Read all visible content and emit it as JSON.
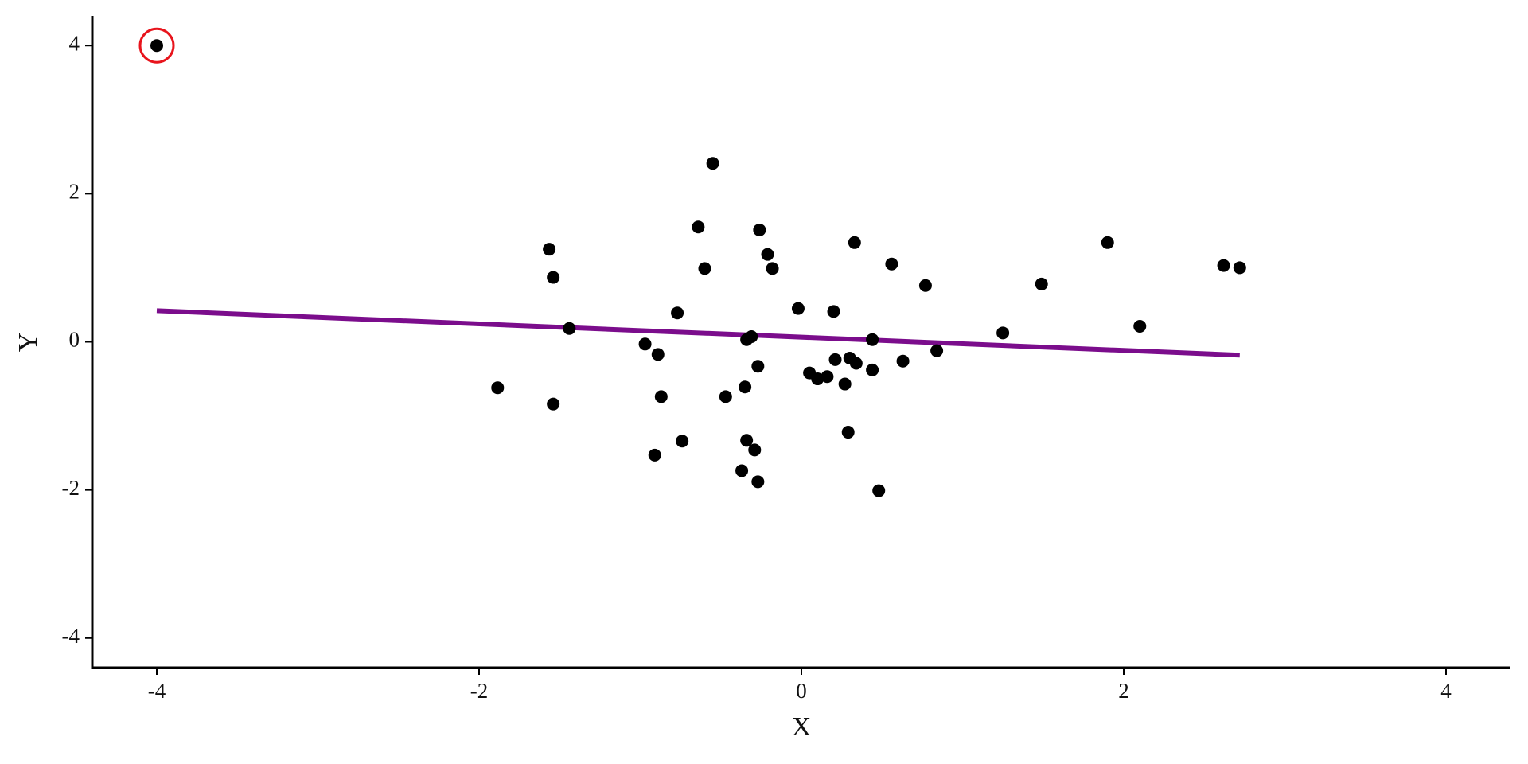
{
  "chart_data": {
    "type": "scatter",
    "x_label": "X",
    "y_label": "Y",
    "x": [
      -4,
      -1.885,
      -1.565,
      -1.54,
      -1.54,
      -1.44,
      -0.97,
      -0.89,
      -0.91,
      -0.87,
      -0.77,
      -0.74,
      -0.64,
      -0.6,
      -0.55,
      -0.47,
      -0.37,
      -0.35,
      -0.34,
      -0.34,
      -0.31,
      -0.29,
      -0.27,
      -0.27,
      -0.26,
      -0.21,
      -0.18,
      -0.02,
      0.05,
      0.1,
      0.16,
      0.2,
      0.21,
      0.27,
      0.29,
      0.3,
      0.33,
      0.34,
      0.44,
      0.44,
      0.48,
      0.56,
      0.63,
      0.77,
      0.84,
      1.25,
      1.49,
      1.9,
      2.1,
      2.62,
      2.72
    ],
    "values": [
      4,
      -0.62,
      1.25,
      0.87,
      -0.84,
      0.18,
      -0.03,
      -0.17,
      -1.53,
      -0.74,
      0.39,
      -1.34,
      1.55,
      0.99,
      2.41,
      -0.74,
      -1.74,
      -0.61,
      0.03,
      -1.33,
      0.07,
      -1.46,
      -1.89,
      -0.33,
      1.51,
      1.18,
      0.99,
      0.45,
      -0.42,
      -0.5,
      -0.47,
      0.41,
      -0.24,
      -0.57,
      -1.22,
      -0.22,
      1.34,
      -0.29,
      0.03,
      -0.38,
      -2.01,
      1.05,
      -0.26,
      0.76,
      -0.12,
      0.12,
      0.78,
      1.34,
      0.21,
      1.03,
      1.0
    ],
    "color": "#000000",
    "highlight": {
      "index": 0,
      "color": "#e8141c"
    },
    "fit_line": {
      "x": [
        -4,
        2.72
      ],
      "values": [
        0.42,
        -0.18
      ],
      "color": "#7b0d8c"
    },
    "xlim": [
      -4.4,
      4.4
    ],
    "ylim": [
      -4.4,
      4.4
    ],
    "xticks": [
      -4,
      -2,
      0,
      2,
      4
    ],
    "yticks": [
      -4,
      -2,
      0,
      2,
      4
    ],
    "grid": false
  }
}
